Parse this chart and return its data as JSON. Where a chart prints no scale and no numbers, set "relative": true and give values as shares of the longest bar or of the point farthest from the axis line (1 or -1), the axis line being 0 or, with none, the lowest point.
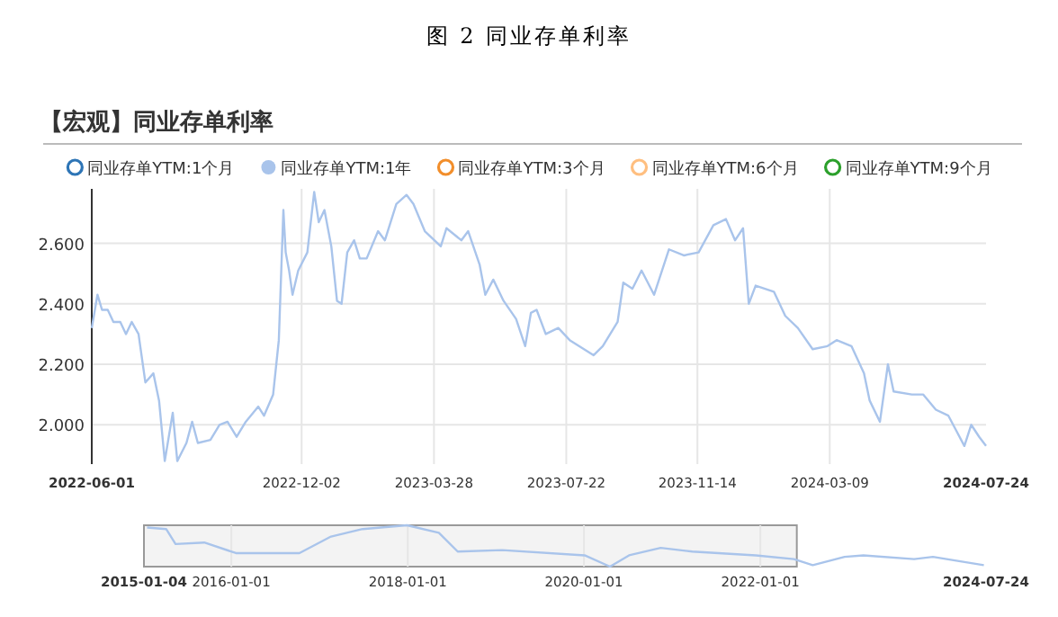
{
  "chart_data": [
    {
      "type": "line",
      "title": "图 2 同业存单利率",
      "subtitle": "【宏观】同业存单利率",
      "legend": "top",
      "grid": true,
      "line_style": "solid",
      "xlim": [
        "2022-06-01",
        "2024-07-24"
      ],
      "xticks": [
        {
          "value": "2022-06-01",
          "label": "2022-06-01"
        },
        {
          "value": "2022-12-02",
          "label": "2022-12-02"
        },
        {
          "value": "2023-03-28",
          "label": "2023-03-28"
        },
        {
          "value": "2023-07-22",
          "label": "2023-07-22"
        },
        {
          "value": "2023-11-14",
          "label": "2023-11-14"
        },
        {
          "value": "2024-03-09",
          "label": "2024-03-09"
        },
        {
          "value": "2024-07-24",
          "label": "2024-07-24"
        }
      ],
      "ylim": [
        1.87,
        2.78
      ],
      "yticks": [
        {
          "value": 2,
          "label": "2.000"
        },
        {
          "value": 2.2,
          "label": "2.200"
        },
        {
          "value": 2.4,
          "label": "2.400"
        },
        {
          "value": 2.6,
          "label": "2.600"
        }
      ],
      "series": [
        {
          "name": "同业存单YTM:1个月",
          "color": "#2e75b6"
        },
        {
          "name": "同业存单YTM:1年",
          "color": "#a9c4eb",
          "x": [
            "2022-06-01",
            "2022-06-06",
            "2022-06-10",
            "2022-06-15",
            "2022-06-20",
            "2022-06-26",
            "2022-07-01",
            "2022-07-06",
            "2022-07-12",
            "2022-07-18",
            "2022-07-25",
            "2022-07-30",
            "2022-08-04",
            "2022-08-11",
            "2022-08-15",
            "2022-08-23",
            "2022-08-28",
            "2022-09-02",
            "2022-09-13",
            "2022-09-21",
            "2022-09-28",
            "2022-10-06",
            "2022-10-14",
            "2022-10-25",
            "2022-10-30",
            "2022-11-07",
            "2022-11-12",
            "2022-11-16",
            "2022-11-18",
            "2022-11-21",
            "2022-11-24",
            "2022-11-29",
            "2022-12-07",
            "2022-12-13",
            "2022-12-17",
            "2022-12-22",
            "2022-12-28",
            "2023-01-02",
            "2023-01-06",
            "2023-01-11",
            "2023-01-17",
            "2023-01-22",
            "2023-01-28",
            "2023-02-07",
            "2023-02-13",
            "2023-02-23",
            "2023-03-04",
            "2023-03-10",
            "2023-03-20",
            "2023-04-03",
            "2023-04-08",
            "2023-04-21",
            "2023-04-27",
            "2023-05-07",
            "2023-05-12",
            "2023-05-19",
            "2023-05-28",
            "2023-06-08",
            "2023-06-16",
            "2023-06-21",
            "2023-06-26",
            "2023-07-04",
            "2023-07-15",
            "2023-07-25",
            "2023-08-15",
            "2023-08-23",
            "2023-09-05",
            "2023-09-10",
            "2023-09-18",
            "2023-09-26",
            "2023-10-07",
            "2023-10-20",
            "2023-11-02",
            "2023-11-15",
            "2023-11-28",
            "2023-12-09",
            "2023-12-17",
            "2023-12-24",
            "2023-12-29",
            "2024-01-04",
            "2024-01-20",
            "2024-01-30",
            "2024-02-10",
            "2024-02-23",
            "2024-03-07",
            "2024-03-15",
            "2024-03-28",
            "2024-04-08",
            "2024-04-13",
            "2024-04-22",
            "2024-04-29",
            "2024-05-04",
            "2024-05-20",
            "2024-05-30",
            "2024-06-10",
            "2024-06-21",
            "2024-06-28",
            "2024-07-05",
            "2024-07-11",
            "2024-07-18",
            "2024-07-24"
          ],
          "values": [
            2.32,
            2.43,
            2.38,
            2.38,
            2.34,
            2.34,
            2.3,
            2.34,
            2.3,
            2.14,
            2.17,
            2.08,
            1.88,
            2.04,
            1.88,
            1.94,
            2.01,
            1.94,
            1.95,
            2.0,
            2.01,
            1.96,
            2.01,
            2.06,
            2.03,
            2.1,
            2.28,
            2.71,
            2.57,
            2.51,
            2.43,
            2.51,
            2.57,
            2.77,
            2.67,
            2.71,
            2.59,
            2.41,
            2.4,
            2.57,
            2.61,
            2.55,
            2.55,
            2.64,
            2.61,
            2.73,
            2.76,
            2.73,
            2.64,
            2.59,
            2.65,
            2.61,
            2.64,
            2.53,
            2.43,
            2.48,
            2.41,
            2.35,
            2.26,
            2.37,
            2.38,
            2.3,
            2.32,
            2.28,
            2.23,
            2.26,
            2.34,
            2.47,
            2.45,
            2.51,
            2.43,
            2.58,
            2.56,
            2.57,
            2.66,
            2.68,
            2.61,
            2.65,
            2.4,
            2.46,
            2.44,
            2.36,
            2.32,
            2.25,
            2.26,
            2.28,
            2.26,
            2.17,
            2.08,
            2.01,
            2.2,
            2.11,
            2.1,
            2.1,
            2.05,
            2.03,
            1.98,
            1.93,
            2.0,
            1.96,
            1.93
          ]
        },
        {
          "name": "同业存单YTM:3个月",
          "color": "#f28e2b"
        },
        {
          "name": "同业存单YTM:6个月",
          "color": "#ffbf80"
        },
        {
          "name": "同业存单YTM:9个月",
          "color": "#2ca02c"
        }
      ]
    },
    {
      "type": "line",
      "relative": true,
      "grid": "x",
      "xlim": [
        "2015-01-04",
        "2024-07-24"
      ],
      "xticks": [
        {
          "value": "2015-01-04",
          "label": "2015-01-04"
        },
        {
          "value": "2016-01-01",
          "label": "2016-01-01"
        },
        {
          "value": "2018-01-01",
          "label": "2018-01-01"
        },
        {
          "value": "2020-01-01",
          "label": "2020-01-01"
        },
        {
          "value": "2022-01-01",
          "label": "2022-01-01"
        },
        {
          "value": "2024-07-24",
          "label": "2024-07-24"
        }
      ],
      "bands": [
        {
          "axis": "x",
          "from": "2015-01-04",
          "to": "2022-06-01",
          "color": "#999999"
        }
      ],
      "series": [
        {
          "color": "#a9c4eb",
          "x": [
            "2015-01-17",
            "2015-04-06",
            "2015-05-15",
            "2015-09-11",
            "2016-01-20",
            "2016-10-09",
            "2017-02-17",
            "2017-06-28",
            "2017-12-29",
            "2018-05-10",
            "2018-07-27",
            "2019-01-27",
            "2020-01-04",
            "2020-04-18",
            "2020-07-06",
            "2020-11-14",
            "2021-03-25",
            "2021-12-13",
            "2022-05-20",
            "2022-08-06",
            "2022-12-16",
            "2023-03-04",
            "2023-09-30",
            "2023-12-17",
            "2024-07-15"
          ],
          "values": [
            0.945,
            0.909,
            0.545,
            0.582,
            0.327,
            0.327,
            0.727,
            0.909,
            1.0,
            0.818,
            0.364,
            0.4,
            0.273,
            0,
            0.273,
            0.455,
            0.364,
            0.273,
            0.182,
            0.036,
            0.236,
            0.273,
            0.182,
            0.236,
            0.036
          ]
        }
      ]
    }
  ]
}
